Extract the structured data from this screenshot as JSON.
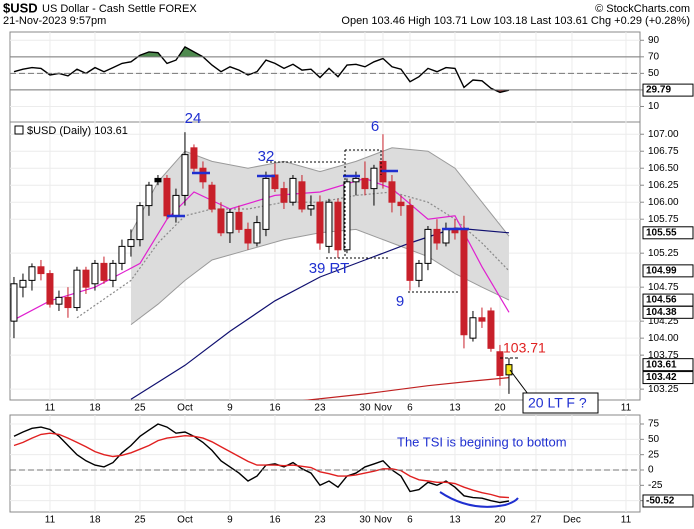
{
  "header": {
    "symbol": "$USD",
    "name": "US Dollar - Cash Settle FOREX",
    "copyright": "© StockCharts.com",
    "date": "21-Nov-2023 9:57pm",
    "quote": "Open 103.46  High 103.71  Low 103.18  Last 103.61  Chg +0.29 (+0.28%)",
    "legend": "$USD (Daily) 103.61"
  },
  "annotations": [
    "24",
    "32",
    "6",
    "39 RT",
    "9",
    "103.71",
    "20 LT F ?",
    "The TSI is begining to bottom"
  ],
  "chart_data": [
    {
      "type": "line",
      "ylim": [
        -8.75,
        100
      ],
      "yticks": [
        90,
        70,
        50,
        30,
        10
      ],
      "xlim": [
        -4.44,
        65.56
      ],
      "overbought": 70,
      "midline": 50,
      "oversold": 30,
      "overbought_color": "#4f8a4f",
      "oversold_color": "#8a3a3a",
      "series": [
        {
          "color": "#000000",
          "x": [
            -4,
            -3,
            -2,
            -1,
            0,
            1,
            2,
            3,
            4,
            5,
            6,
            7,
            8,
            9,
            10,
            11,
            12,
            13,
            14,
            15,
            16,
            17,
            18,
            19,
            20,
            21,
            22,
            23,
            24,
            25,
            26,
            27,
            28,
            29,
            30,
            31,
            32,
            33,
            34,
            35,
            36,
            37,
            38,
            39,
            40,
            41,
            42,
            43,
            44,
            45,
            46,
            47,
            48,
            49,
            50,
            51
          ],
          "values": [
            52,
            55,
            57,
            56,
            48,
            50,
            47,
            55,
            50,
            57,
            52,
            57,
            62,
            64,
            72,
            76,
            75,
            62,
            66,
            82,
            76,
            70,
            60,
            52,
            58,
            54,
            48,
            52,
            66,
            62,
            56,
            61,
            54,
            55,
            45,
            56,
            46,
            60,
            61,
            58,
            64,
            68,
            58,
            55,
            40,
            46,
            56,
            52,
            57,
            56,
            33,
            42,
            41,
            32,
            27,
            29.79
          ]
        }
      ],
      "last_labels": [
        29.79
      ]
    },
    {
      "type": "candlestick",
      "ylim": [
        103.09,
        107.18
      ],
      "xlim": [
        -4.44,
        65.56
      ],
      "yticks": [
        {
          "value": 107,
          "label": "107.00"
        },
        {
          "value": 106.75,
          "label": "106.75"
        },
        {
          "value": 106.5,
          "label": "106.50"
        },
        {
          "value": 106.25,
          "label": "106.25"
        },
        {
          "value": 106,
          "label": "106.00"
        },
        {
          "value": 105.75,
          "label": "105.75"
        },
        {
          "value": 105.25,
          "label": "105.25"
        },
        {
          "value": 104.75,
          "label": "104.75"
        },
        {
          "value": 104.25,
          "label": "104.25"
        },
        {
          "value": 104,
          "label": "104.00"
        },
        {
          "value": 103.75,
          "label": "103.75"
        },
        {
          "value": 103.25,
          "label": "103.25"
        }
      ],
      "xticks": [
        {
          "value": 0,
          "label": "11"
        },
        {
          "value": 5,
          "label": "18"
        },
        {
          "value": 10,
          "label": "25"
        },
        {
          "value": 15,
          "label": "Oct"
        },
        {
          "value": 20,
          "label": "9"
        },
        {
          "value": 25,
          "label": "16"
        },
        {
          "value": 30,
          "label": "23"
        },
        {
          "value": 35,
          "label": "30"
        },
        {
          "value": 37,
          "label": "Nov"
        },
        {
          "value": 40,
          "label": "6"
        },
        {
          "value": 45,
          "label": "13"
        },
        {
          "value": 50,
          "label": "20"
        },
        {
          "value": 54,
          "label": "27"
        },
        {
          "value": 58,
          "label": "Dec"
        },
        {
          "value": 64,
          "label": "11"
        }
      ],
      "grid": true,
      "up_color": "#000000",
      "down_color": "#c8202a",
      "last_color": "#f5e61a",
      "x": [
        -4,
        -3,
        -2,
        -1,
        0,
        1,
        2,
        3,
        4,
        5,
        6,
        7,
        8,
        9,
        10,
        11,
        12,
        13,
        14,
        15,
        16,
        17,
        18,
        19,
        20,
        21,
        22,
        23,
        24,
        25,
        26,
        27,
        28,
        29,
        30,
        31,
        32,
        33,
        34,
        35,
        36,
        37,
        38,
        39,
        40,
        41,
        42,
        43,
        44,
        45,
        46,
        47,
        48,
        49,
        50,
        51
      ],
      "open": [
        104.25,
        104.75,
        104.85,
        105.05,
        104.95,
        104.5,
        104.6,
        104.45,
        105.0,
        104.8,
        105.1,
        104.85,
        105.1,
        105.35,
        105.45,
        105.95,
        106.35,
        106.35,
        105.8,
        106.1,
        106.8,
        106.5,
        106.25,
        105.9,
        105.55,
        105.85,
        105.6,
        105.4,
        105.6,
        106.4,
        106.2,
        106.0,
        106.3,
        105.9,
        106.0,
        105.35,
        106.0,
        105.3,
        106.3,
        106.35,
        106.2,
        106.6,
        106.3,
        106.0,
        105.95,
        104.85,
        105.1,
        105.6,
        105.4,
        105.6,
        105.6,
        104.0,
        104.3,
        104.4,
        103.8,
        103.46
      ],
      "high": [
        104.9,
        104.95,
        105.1,
        105.15,
        105.0,
        104.7,
        104.75,
        105.05,
        105.05,
        105.15,
        105.2,
        105.15,
        105.45,
        105.6,
        106.0,
        106.3,
        106.4,
        106.4,
        106.2,
        107.03,
        106.85,
        106.6,
        106.3,
        106.0,
        105.9,
        105.95,
        105.7,
        105.8,
        106.45,
        106.57,
        106.3,
        106.4,
        106.4,
        106.1,
        106.1,
        106.05,
        106.05,
        106.35,
        106.45,
        106.6,
        106.55,
        107.0,
        106.4,
        106.1,
        106.05,
        105.15,
        105.65,
        105.75,
        105.7,
        105.75,
        105.8,
        104.4,
        104.45,
        104.45,
        103.9,
        103.71
      ],
      "low": [
        104.0,
        104.6,
        104.7,
        104.85,
        104.45,
        104.4,
        104.3,
        104.4,
        104.65,
        104.7,
        104.8,
        104.75,
        105.0,
        105.2,
        105.35,
        105.8,
        106.25,
        105.75,
        105.7,
        105.95,
        106.45,
        106.2,
        105.85,
        105.5,
        105.4,
        105.55,
        105.3,
        105.35,
        105.5,
        106.15,
        105.9,
        105.95,
        105.85,
        105.8,
        105.3,
        105.25,
        105.18,
        105.25,
        106.1,
        106.1,
        105.95,
        106.2,
        105.85,
        105.8,
        104.7,
        104.75,
        105.0,
        105.3,
        105.35,
        105.45,
        103.85,
        103.95,
        104.15,
        103.8,
        103.3,
        103.18
      ],
      "close": [
        104.8,
        104.85,
        105.05,
        104.95,
        104.5,
        104.6,
        104.45,
        105.0,
        104.75,
        105.1,
        104.85,
        105.1,
        105.35,
        105.45,
        105.95,
        106.25,
        106.3,
        105.8,
        106.1,
        106.7,
        106.5,
        106.3,
        105.9,
        105.55,
        105.85,
        105.6,
        105.4,
        105.7,
        106.35,
        106.2,
        106.0,
        106.35,
        105.9,
        105.95,
        105.4,
        106.0,
        105.3,
        106.3,
        106.35,
        106.2,
        106.5,
        106.3,
        106.0,
        105.95,
        104.85,
        105.1,
        105.6,
        105.4,
        105.6,
        105.55,
        104.05,
        104.3,
        104.25,
        103.85,
        103.45,
        103.61
      ],
      "band": {
        "fill": "#dcdcdc",
        "color": "#9a9a9a",
        "x": [
          9,
          12,
          15,
          18,
          22,
          26,
          30,
          34,
          38,
          42,
          45,
          48,
          51
        ],
        "upper": [
          105.55,
          106.3,
          106.75,
          106.6,
          106.5,
          106.6,
          106.45,
          106.6,
          106.8,
          106.75,
          106.5,
          106.0,
          105.5
        ],
        "lower": [
          104.2,
          104.5,
          104.85,
          105.15,
          105.3,
          105.45,
          105.55,
          105.6,
          105.4,
          105.2,
          104.95,
          104.75,
          104.56
        ]
      },
      "lines": [
        {
          "color": "#8a8a8a",
          "dash": true,
          "x": [
            3,
            9,
            12,
            15,
            18,
            22,
            26,
            30,
            34,
            38,
            42,
            45,
            48,
            51
          ],
          "values": [
            104.3,
            104.85,
            105.4,
            105.8,
            105.9,
            105.9,
            106.0,
            106.0,
            106.1,
            106.15,
            106.0,
            105.75,
            105.4,
            104.99
          ]
        },
        {
          "color": "#e020d0",
          "x": [
            -4,
            0,
            5,
            10,
            13,
            16,
            20,
            25,
            30,
            35,
            38,
            42,
            45,
            48,
            51
          ],
          "values": [
            104.27,
            104.55,
            104.75,
            105.1,
            105.75,
            106.15,
            105.9,
            106.1,
            106.15,
            106.35,
            106.2,
            105.75,
            105.8,
            105.05,
            104.38
          ]
        },
        {
          "color": "#101070",
          "x": [
            9,
            15,
            20,
            25,
            30,
            35,
            40,
            45,
            51
          ],
          "values": [
            103.1,
            103.6,
            104.1,
            104.55,
            104.9,
            105.15,
            105.4,
            105.62,
            105.55
          ]
        },
        {
          "color": "#c02020",
          "x": [
            28,
            35,
            42,
            47,
            51
          ],
          "values": [
            103.08,
            103.18,
            103.3,
            103.37,
            103.42
          ]
        }
      ],
      "last_labels": [
        105.55,
        104.99,
        104.56,
        104.38,
        103.61,
        103.42
      ]
    },
    {
      "type": "line",
      "ylim": [
        -68.5,
        89.7
      ],
      "yticks": [
        75,
        50,
        25,
        0,
        -25,
        -50
      ],
      "xlim": [
        -4.44,
        65.56
      ],
      "zero": 0,
      "series": [
        {
          "color": "#000000",
          "x": [
            -4,
            -3,
            -2,
            -1,
            0,
            1,
            2,
            3,
            4,
            5,
            6,
            7,
            8,
            9,
            10,
            11,
            12,
            13,
            14,
            15,
            16,
            17,
            18,
            19,
            20,
            21,
            22,
            23,
            24,
            25,
            26,
            27,
            28,
            29,
            30,
            31,
            32,
            33,
            34,
            35,
            36,
            37,
            38,
            39,
            40,
            41,
            42,
            43,
            44,
            45,
            46,
            47,
            48,
            49,
            50,
            51
          ],
          "values": [
            55,
            62,
            68,
            70,
            66,
            55,
            40,
            25,
            15,
            8,
            5,
            12,
            28,
            40,
            55,
            65,
            75,
            70,
            60,
            62,
            55,
            45,
            32,
            15,
            5,
            -5,
            -18,
            -10,
            8,
            10,
            5,
            12,
            2,
            -5,
            -25,
            -18,
            -28,
            -10,
            -5,
            5,
            10,
            15,
            0,
            -10,
            -35,
            -32,
            -20,
            -25,
            -18,
            -28,
            -42,
            -45,
            -46,
            -50,
            -53,
            -50.52
          ]
        },
        {
          "color": "#e02020",
          "x": [
            -4,
            -3,
            -2,
            -1,
            0,
            1,
            2,
            3,
            4,
            5,
            6,
            7,
            8,
            9,
            10,
            11,
            12,
            13,
            14,
            15,
            16,
            17,
            18,
            19,
            20,
            21,
            22,
            23,
            24,
            25,
            26,
            27,
            28,
            29,
            30,
            31,
            32,
            33,
            34,
            35,
            36,
            37,
            38,
            39,
            40,
            41,
            42,
            43,
            44,
            45,
            46,
            47,
            48,
            49,
            50,
            51
          ],
          "values": [
            40,
            45,
            52,
            58,
            60,
            58,
            52,
            45,
            38,
            30,
            25,
            22,
            24,
            28,
            34,
            40,
            48,
            52,
            54,
            56,
            55,
            52,
            46,
            38,
            30,
            22,
            14,
            8,
            8,
            8,
            7,
            8,
            6,
            4,
            -3,
            -6,
            -10,
            -10,
            -8,
            -5,
            -2,
            2,
            2,
            -1,
            -10,
            -16,
            -18,
            -20,
            -20,
            -22,
            -28,
            -33,
            -37,
            -40,
            -44,
            -45
          ]
        }
      ],
      "last_labels": [
        -50.52
      ]
    }
  ]
}
